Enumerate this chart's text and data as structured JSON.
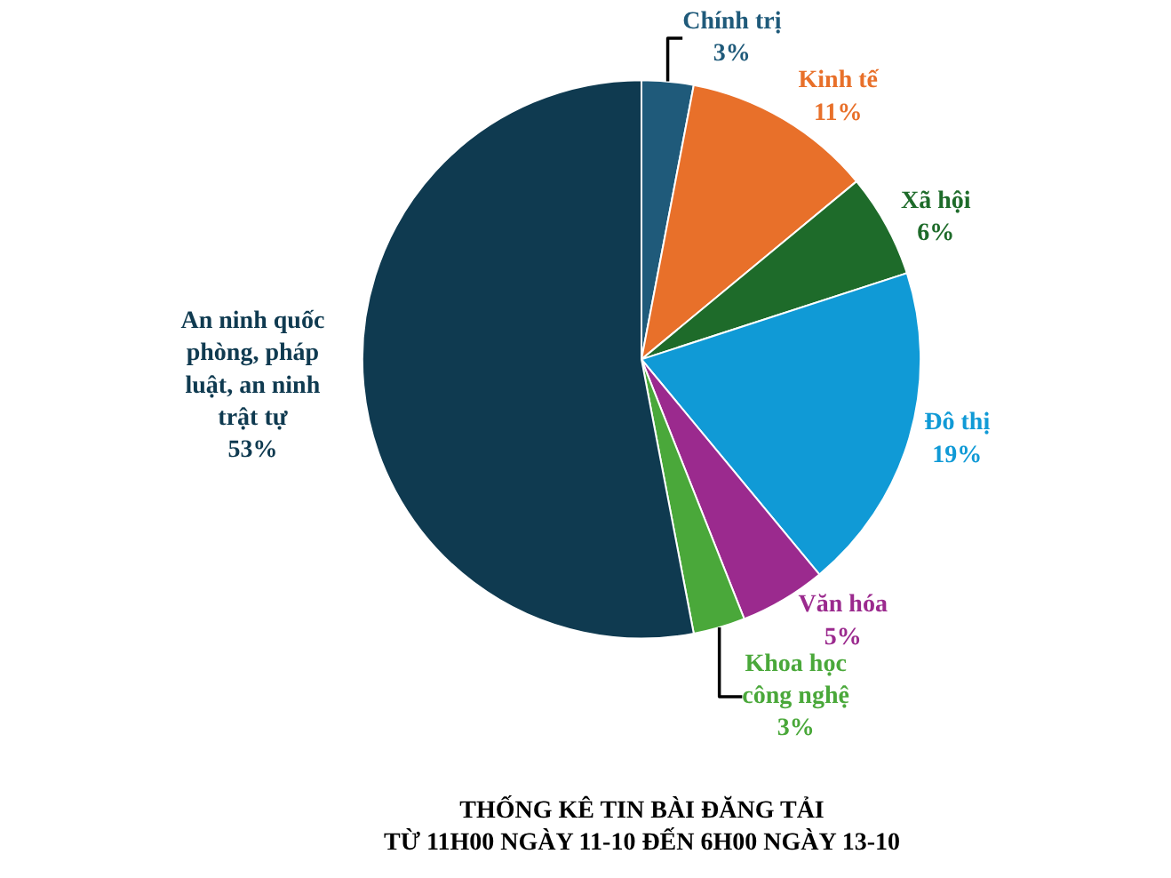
{
  "chart_data": {
    "type": "pie",
    "title": "THỐNG KÊ TIN BÀI ĐĂNG TẢI\nTỪ 11H00 NGÀY 11-10 ĐẾN 6H00 NGÀY 13-10",
    "categories": [
      "Chính trị",
      "Kinh tế",
      "Xã hội",
      "Đô thị",
      "Văn hóa",
      "Khoa học\ncông nghệ",
      "An ninh quốc\nphòng, pháp\nluật, an ninh\ntrật tự"
    ],
    "values": [
      3,
      11,
      6,
      19,
      5,
      3,
      53
    ],
    "value_labels": [
      "3%",
      "11%",
      "6%",
      "19%",
      "5%",
      "3%",
      "53%"
    ],
    "colors": [
      "#1f5a7a",
      "#e8702a",
      "#1e6b2a",
      "#109ad6",
      "#9b2a8e",
      "#4aa83a",
      "#0f3a50"
    ],
    "legend": false
  }
}
